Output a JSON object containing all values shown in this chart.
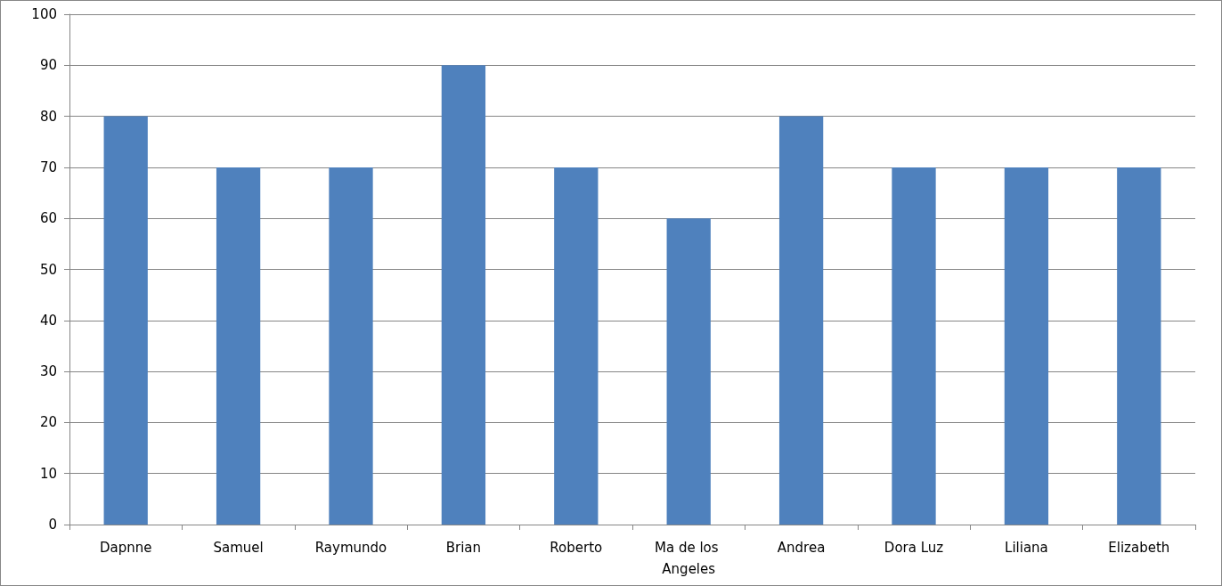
{
  "chart_data": {
    "type": "bar",
    "categories": [
      "Dapnne",
      "Samuel",
      "Raymundo",
      "Brian",
      "Roberto",
      "Ma de los Angeles",
      "Andrea",
      "Dora Luz",
      "Liliana",
      "Elizabeth"
    ],
    "values": [
      80,
      70,
      70,
      90,
      70,
      60,
      80,
      70,
      70,
      70
    ],
    "color": "#4f81bd",
    "ylim": [
      0,
      100
    ],
    "yticks": [
      0,
      10,
      20,
      30,
      40,
      50,
      60,
      70,
      80,
      90,
      100
    ],
    "grid": "y"
  }
}
